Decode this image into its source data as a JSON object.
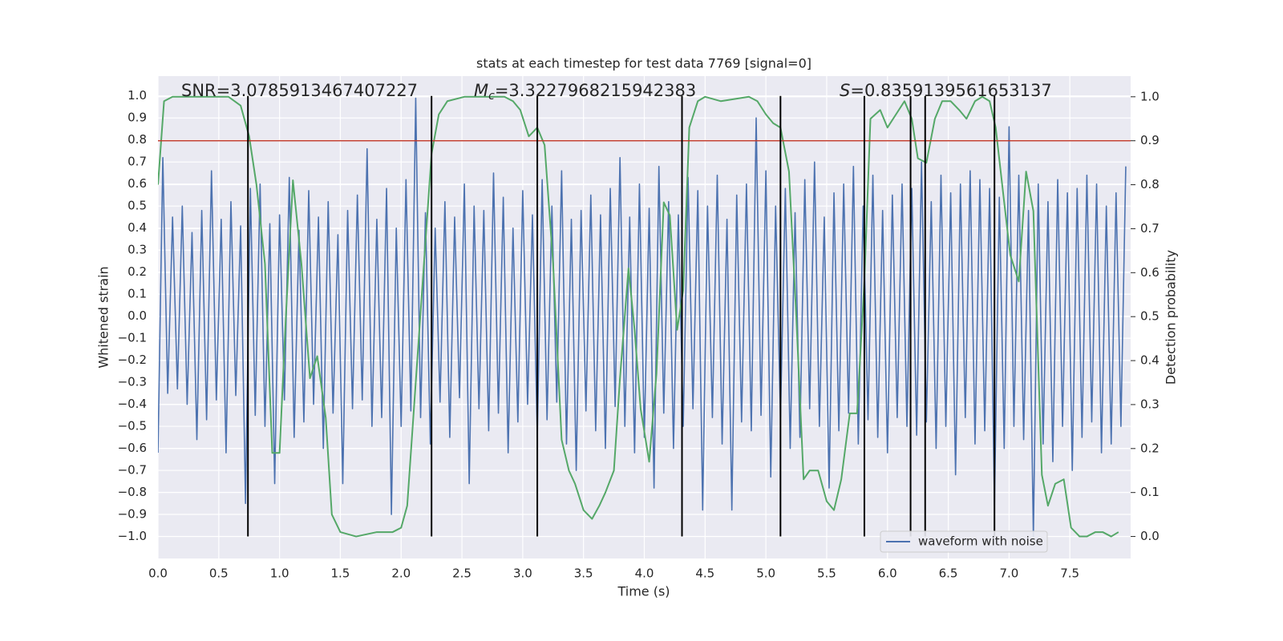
{
  "chart_data": {
    "type": "line",
    "title": "stats at each timestep for test data 7769 [signal=0]",
    "x_label": "Time (s)",
    "y_label": "Whitened strain",
    "y2_label": "Detection probability",
    "xlim": [
      0,
      8.0
    ],
    "ylim": [
      -1.1,
      1.09
    ],
    "y2lim": [
      -0.05,
      1.047
    ],
    "grid": true,
    "legend": "lower right",
    "xticks": [
      {
        "value": 0,
        "label": "0.0"
      },
      {
        "value": 0.5,
        "label": "0.5"
      },
      {
        "value": 1,
        "label": "1.0"
      },
      {
        "value": 1.5,
        "label": "1.5"
      },
      {
        "value": 2,
        "label": "2.0"
      },
      {
        "value": 2.5,
        "label": "2.5"
      },
      {
        "value": 3,
        "label": "3.0"
      },
      {
        "value": 3.5,
        "label": "3.5"
      },
      {
        "value": 4,
        "label": "4.0"
      },
      {
        "value": 4.5,
        "label": "4.5"
      },
      {
        "value": 5,
        "label": "5.0"
      },
      {
        "value": 5.5,
        "label": "5.5"
      },
      {
        "value": 6,
        "label": "6.0"
      },
      {
        "value": 6.5,
        "label": "6.5"
      },
      {
        "value": 7,
        "label": "7.0"
      },
      {
        "value": 7.5,
        "label": "7.5"
      }
    ],
    "yticks": [
      {
        "value": -1,
        "label": "−1.0"
      },
      {
        "value": -0.9,
        "label": "−0.9"
      },
      {
        "value": -0.8,
        "label": "−0.8"
      },
      {
        "value": -0.7,
        "label": "−0.7"
      },
      {
        "value": -0.6,
        "label": "−0.6"
      },
      {
        "value": -0.5,
        "label": "−0.5"
      },
      {
        "value": -0.4,
        "label": "−0.4"
      },
      {
        "value": -0.3,
        "label": "−0.3"
      },
      {
        "value": -0.2,
        "label": "−0.2"
      },
      {
        "value": -0.1,
        "label": "−0.1"
      },
      {
        "value": 0,
        "label": "0.0"
      },
      {
        "value": 0.1,
        "label": "0.1"
      },
      {
        "value": 0.2,
        "label": "0.2"
      },
      {
        "value": 0.3,
        "label": "0.3"
      },
      {
        "value": 0.4,
        "label": "0.4"
      },
      {
        "value": 0.5,
        "label": "0.5"
      },
      {
        "value": 0.6,
        "label": "0.6"
      },
      {
        "value": 0.7,
        "label": "0.7"
      },
      {
        "value": 0.8,
        "label": "0.8"
      },
      {
        "value": 0.9,
        "label": "0.9"
      },
      {
        "value": 1,
        "label": "1.0"
      }
    ],
    "y2ticks": [
      {
        "value": 0,
        "label": "0.0"
      },
      {
        "value": 0.1,
        "label": "0.1"
      },
      {
        "value": 0.2,
        "label": "0.2"
      },
      {
        "value": 0.3,
        "label": "0.3"
      },
      {
        "value": 0.4,
        "label": "0.4"
      },
      {
        "value": 0.5,
        "label": "0.5"
      },
      {
        "value": 0.6,
        "label": "0.6"
      },
      {
        "value": 0.7,
        "label": "0.7"
      },
      {
        "value": 0.8,
        "label": "0.8"
      },
      {
        "value": 0.9,
        "label": "0.9"
      },
      {
        "value": 1,
        "label": "1.0"
      }
    ],
    "annotations": [
      {
        "text": "SNR=3.0785913467407227"
      },
      {
        "symbol": "M",
        "subscript": "c",
        "text": "=3.3227968215942383"
      },
      {
        "symbol": "S",
        "text": "=0.8359139561653137"
      }
    ],
    "hline": {
      "y": 0.9,
      "axis": "y2",
      "color": "#c0392b"
    },
    "vlines": {
      "x": [
        0.74,
        2.25,
        3.12,
        4.31,
        5.12,
        5.81,
        6.19,
        6.31,
        6.88
      ],
      "ymin": -1.0,
      "ymax": 1.0,
      "color": "#000000"
    },
    "series": [
      {
        "name": "waveform with noise",
        "color": "#4c72b0",
        "x": [
          0,
          0.04,
          0.08,
          0.12,
          0.16,
          0.2,
          0.24,
          0.28,
          0.32,
          0.36,
          0.4,
          0.44,
          0.48,
          0.52,
          0.56,
          0.6,
          0.64,
          0.68,
          0.72,
          0.76,
          0.8,
          0.84,
          0.88,
          0.92,
          0.96,
          1.0,
          1.04,
          1.08,
          1.12,
          1.16,
          1.2,
          1.24,
          1.28,
          1.32,
          1.36,
          1.4,
          1.44,
          1.48,
          1.52,
          1.56,
          1.6,
          1.64,
          1.68,
          1.72,
          1.76,
          1.8,
          1.84,
          1.88,
          1.92,
          1.96,
          2.0,
          2.04,
          2.08,
          2.12,
          2.16,
          2.2,
          2.24,
          2.28,
          2.32,
          2.36,
          2.4,
          2.44,
          2.48,
          2.52,
          2.56,
          2.6,
          2.64,
          2.68,
          2.72,
          2.76,
          2.8,
          2.84,
          2.88,
          2.92,
          2.96,
          3.0,
          3.04,
          3.08,
          3.12,
          3.16,
          3.2,
          3.24,
          3.28,
          3.32,
          3.36,
          3.4,
          3.44,
          3.48,
          3.52,
          3.56,
          3.6,
          3.64,
          3.68,
          3.72,
          3.76,
          3.8,
          3.84,
          3.88,
          3.92,
          3.96,
          4.0,
          4.04,
          4.08,
          4.12,
          4.16,
          4.2,
          4.24,
          4.28,
          4.32,
          4.36,
          4.4,
          4.44,
          4.48,
          4.52,
          4.56,
          4.6,
          4.64,
          4.68,
          4.72,
          4.76,
          4.8,
          4.84,
          4.88,
          4.92,
          4.96,
          5.0,
          5.04,
          5.08,
          5.12,
          5.16,
          5.2,
          5.24,
          5.28,
          5.32,
          5.36,
          5.4,
          5.44,
          5.48,
          5.52,
          5.56,
          5.6,
          5.64,
          5.68,
          5.72,
          5.76,
          5.8,
          5.84,
          5.88,
          5.92,
          5.96,
          6.0,
          6.04,
          6.08,
          6.12,
          6.16,
          6.2,
          6.24,
          6.28,
          6.32,
          6.36,
          6.4,
          6.44,
          6.48,
          6.52,
          6.56,
          6.6,
          6.64,
          6.68,
          6.72,
          6.76,
          6.8,
          6.84,
          6.88,
          6.92,
          6.96,
          7.0,
          7.04,
          7.08,
          7.12,
          7.16,
          7.2,
          7.24,
          7.28,
          7.32,
          7.36,
          7.4,
          7.44,
          7.48,
          7.52,
          7.56,
          7.6,
          7.64,
          7.68,
          7.72,
          7.76,
          7.8,
          7.84,
          7.88,
          7.92,
          7.96
        ],
        "values": [
          -0.62,
          0.72,
          -0.35,
          0.45,
          -0.33,
          0.5,
          -0.4,
          0.38,
          -0.56,
          0.48,
          -0.47,
          0.66,
          -0.38,
          0.44,
          -0.62,
          0.52,
          -0.36,
          0.41,
          -0.85,
          0.58,
          -0.45,
          0.6,
          -0.5,
          0.42,
          -0.76,
          0.46,
          -0.38,
          0.63,
          -0.55,
          0.39,
          -0.48,
          0.57,
          -0.4,
          0.45,
          -0.6,
          0.52,
          -0.44,
          0.37,
          -0.76,
          0.48,
          -0.42,
          0.55,
          -0.38,
          0.76,
          -0.5,
          0.44,
          -0.46,
          0.58,
          -0.9,
          0.4,
          -0.5,
          0.62,
          -0.43,
          0.99,
          -0.46,
          0.47,
          -0.58,
          0.4,
          -0.39,
          0.52,
          -0.55,
          0.45,
          -0.37,
          0.6,
          -0.76,
          0.5,
          -0.42,
          0.48,
          -0.52,
          0.65,
          -0.44,
          0.54,
          -0.62,
          0.4,
          -0.48,
          0.57,
          -0.4,
          0.46,
          -0.55,
          0.62,
          -0.47,
          0.5,
          -0.39,
          0.66,
          -0.58,
          0.44,
          -0.7,
          0.48,
          -0.43,
          0.55,
          -0.52,
          0.46,
          -0.6,
          0.58,
          -0.41,
          0.72,
          -0.5,
          0.45,
          -0.62,
          0.6,
          -0.55,
          0.49,
          -0.78,
          0.68,
          -0.44,
          0.52,
          -0.6,
          0.46,
          -0.5,
          0.63,
          -0.42,
          0.57,
          -0.88,
          0.5,
          -0.46,
          0.64,
          -0.58,
          0.44,
          -0.88,
          0.55,
          -0.48,
          0.6,
          -0.52,
          0.9,
          -0.45,
          0.66,
          -0.73,
          0.5,
          -0.46,
          0.58,
          -0.6,
          0.47,
          -0.55,
          0.62,
          -0.42,
          0.7,
          -0.5,
          0.45,
          -0.78,
          0.56,
          -0.52,
          0.6,
          -0.44,
          0.68,
          -0.58,
          0.5,
          -0.47,
          0.64,
          -0.55,
          0.48,
          -0.62,
          0.55,
          -0.46,
          0.6,
          -0.5,
          0.58,
          -0.54,
          0.7,
          -0.48,
          0.52,
          -0.6,
          0.64,
          -0.5,
          0.56,
          -0.72,
          0.6,
          -0.46,
          0.66,
          -0.58,
          0.62,
          -0.52,
          0.58,
          -0.86,
          0.54,
          -0.6,
          0.86,
          -0.5,
          0.64,
          -0.56,
          0.48,
          -1.0,
          0.6,
          -0.58,
          0.52,
          -0.66,
          0.62,
          -0.5,
          0.56,
          -0.7,
          0.58,
          -0.55,
          0.64,
          -0.48,
          0.6,
          -0.62,
          0.5,
          -0.58,
          0.56,
          -0.5,
          0.68
        ]
      },
      {
        "axis": "y2",
        "color": "#55a868",
        "x": [
          0,
          0.05,
          0.12,
          0.58,
          0.68,
          0.75,
          0.81,
          0.88,
          0.94,
          1.0,
          1.05,
          1.11,
          1.18,
          1.25,
          1.31,
          1.38,
          1.43,
          1.5,
          1.63,
          1.8,
          1.93,
          2.0,
          2.05,
          2.1,
          2.18,
          2.25,
          2.31,
          2.38,
          2.52,
          2.85,
          2.92,
          2.98,
          3.05,
          3.12,
          3.18,
          3.25,
          3.32,
          3.38,
          3.43,
          3.5,
          3.57,
          3.63,
          3.68,
          3.75,
          3.8,
          3.87,
          3.92,
          3.97,
          4.04,
          4.1,
          4.16,
          4.21,
          4.27,
          4.32,
          4.37,
          4.44,
          4.5,
          4.63,
          4.86,
          4.93,
          5.0,
          5.06,
          5.12,
          5.19,
          5.25,
          5.31,
          5.36,
          5.43,
          5.5,
          5.56,
          5.62,
          5.69,
          5.75,
          5.81,
          5.86,
          5.94,
          6.0,
          6.07,
          6.14,
          6.2,
          6.25,
          6.32,
          6.39,
          6.45,
          6.52,
          6.59,
          6.65,
          6.72,
          6.78,
          6.84,
          6.89,
          6.96,
          7.01,
          7.08,
          7.14,
          7.2,
          7.27,
          7.32,
          7.38,
          7.45,
          7.51,
          7.58,
          7.64,
          7.71,
          7.77,
          7.84,
          7.9
        ],
        "values": [
          0.8,
          0.99,
          1.0,
          1.0,
          0.98,
          0.91,
          0.8,
          0.62,
          0.19,
          0.19,
          0.49,
          0.81,
          0.62,
          0.36,
          0.41,
          0.27,
          0.05,
          0.01,
          0.0,
          0.01,
          0.01,
          0.02,
          0.07,
          0.27,
          0.59,
          0.87,
          0.96,
          0.99,
          1.0,
          1.0,
          0.99,
          0.97,
          0.91,
          0.93,
          0.89,
          0.62,
          0.22,
          0.15,
          0.12,
          0.06,
          0.04,
          0.07,
          0.1,
          0.15,
          0.36,
          0.61,
          0.47,
          0.29,
          0.17,
          0.37,
          0.76,
          0.73,
          0.47,
          0.56,
          0.93,
          0.99,
          1.0,
          0.99,
          1.0,
          0.99,
          0.96,
          0.94,
          0.93,
          0.83,
          0.5,
          0.13,
          0.15,
          0.15,
          0.08,
          0.06,
          0.13,
          0.28,
          0.28,
          0.58,
          0.95,
          0.97,
          0.93,
          0.96,
          0.99,
          0.95,
          0.86,
          0.85,
          0.95,
          0.99,
          0.99,
          0.97,
          0.95,
          0.99,
          1.0,
          0.99,
          0.93,
          0.76,
          0.64,
          0.58,
          0.83,
          0.74,
          0.14,
          0.07,
          0.12,
          0.13,
          0.02,
          0.0,
          0.0,
          0.01,
          0.01,
          0.0,
          0.01
        ]
      }
    ]
  }
}
